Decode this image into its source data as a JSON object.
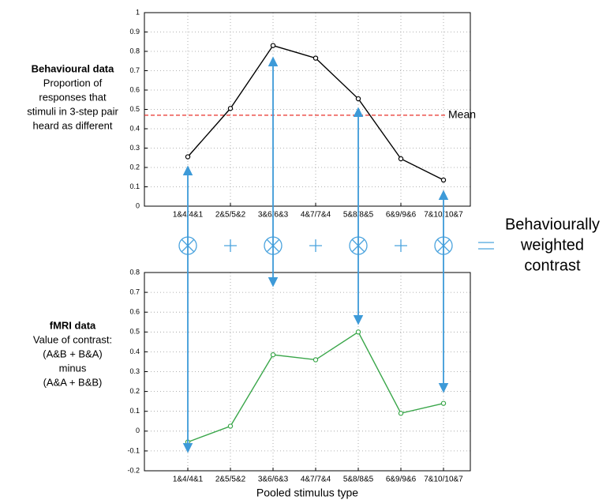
{
  "charts": [
    {
      "type": "line",
      "label_title": "Behavioural data",
      "label_lines": [
        "Proportion of",
        "responses that",
        "stimuli in 3-step pair",
        "heard as different"
      ],
      "categories": [
        "1&4/4&1",
        "2&5/5&2",
        "3&6/6&3",
        "4&7/7&4",
        "5&8/8&5",
        "6&9/9&6",
        "7&10/10&7"
      ],
      "series": [
        {
          "color": "#000000",
          "values": [
            0.255,
            0.505,
            0.83,
            0.765,
            0.555,
            0.245,
            0.135
          ]
        }
      ],
      "mean": {
        "value": 0.47,
        "label": "Mean",
        "color": "#e8302a"
      },
      "ylim": [
        0,
        1
      ],
      "yticks": [
        0,
        0.1,
        0.2,
        0.3,
        0.4,
        0.5,
        0.6,
        0.7,
        0.8,
        0.9,
        1
      ],
      "grid": true
    },
    {
      "type": "line",
      "label_title": "fMRI data",
      "label_lines": [
        "Value of contrast:",
        "(A&B + B&A)",
        "minus",
        "(A&A + B&B)"
      ],
      "categories": [
        "1&4/4&1",
        "2&5/5&2",
        "3&6/6&3",
        "4&7/7&4",
        "5&8/8&5",
        "6&9/9&6",
        "7&10/10&7"
      ],
      "series": [
        {
          "color": "#3aa64a",
          "values": [
            -0.055,
            0.025,
            0.385,
            0.36,
            0.5,
            0.09,
            0.14
          ]
        }
      ],
      "x_label": "Pooled stimulus type",
      "ylim": [
        -0.2,
        0.8
      ],
      "yticks": [
        -0.2,
        -0.1,
        0,
        0.1,
        0.2,
        0.3,
        0.4,
        0.5,
        0.6,
        0.7,
        0.8
      ],
      "grid": true
    }
  ],
  "contrast_label": [
    "Behaviourally",
    "weighted",
    "contrast"
  ]
}
